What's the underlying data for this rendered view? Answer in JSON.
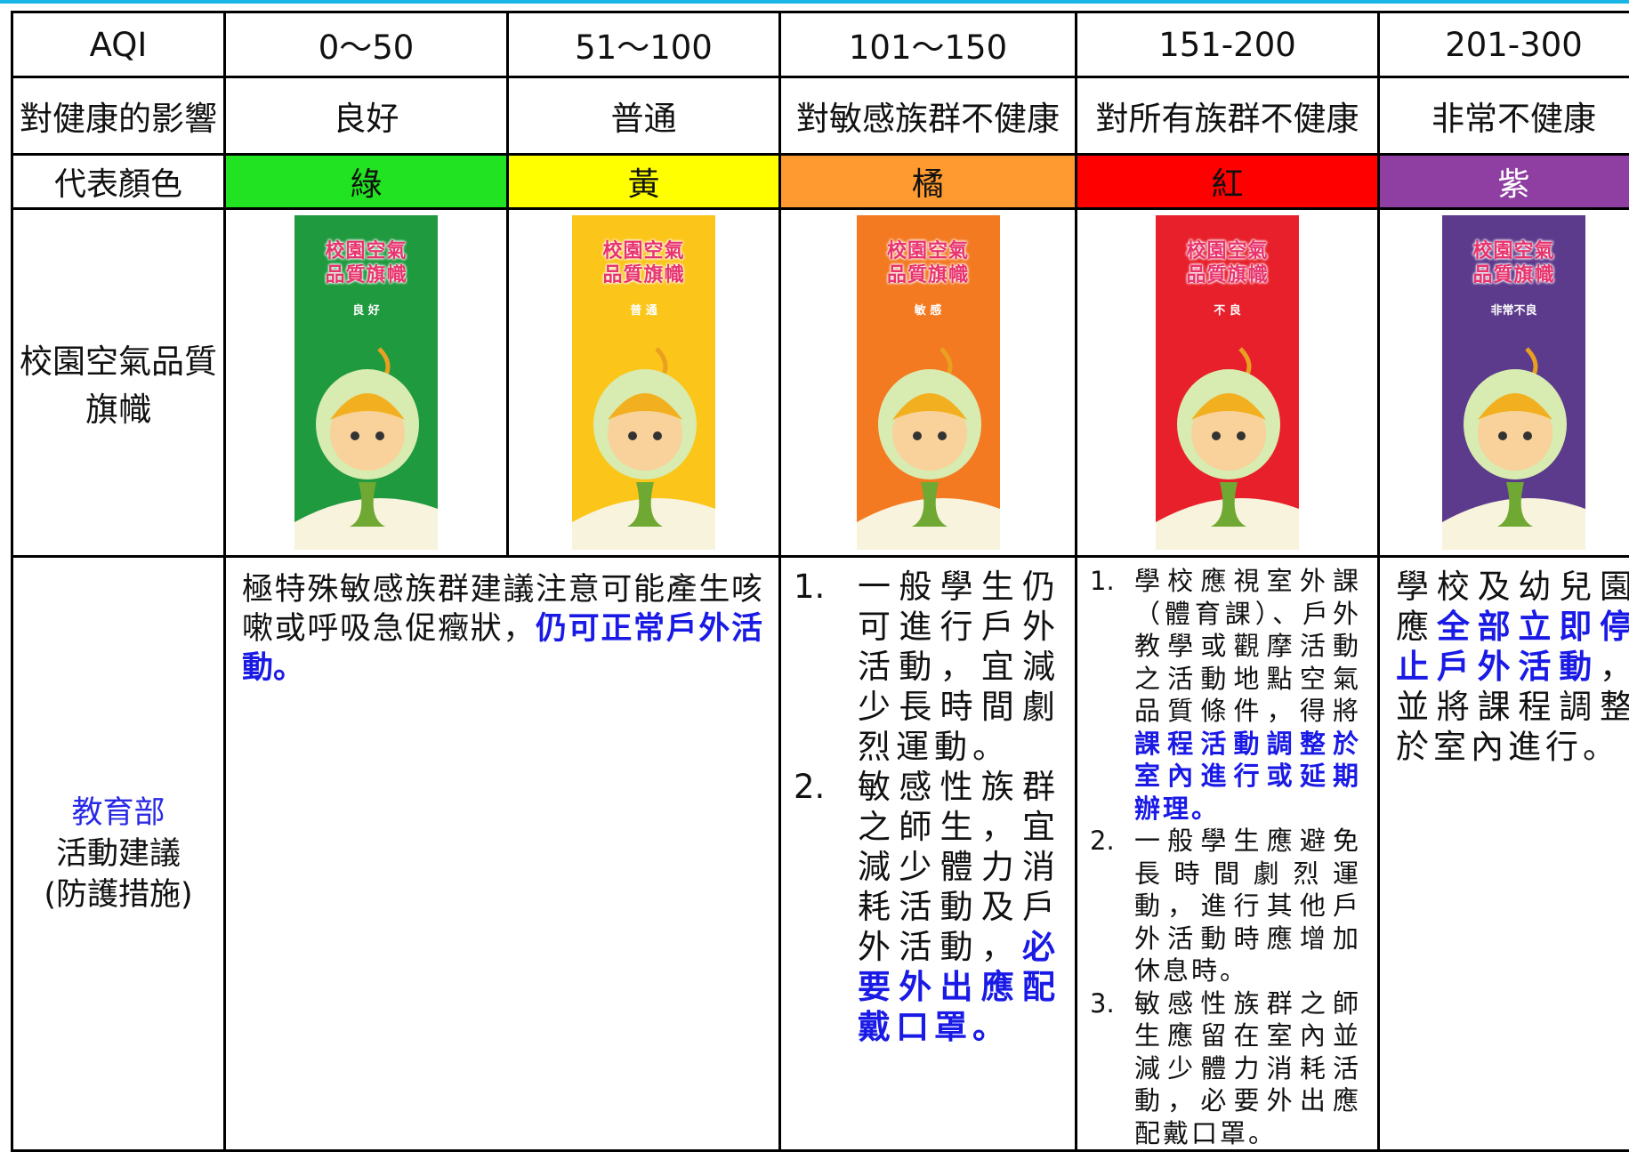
{
  "table": {
    "header": [
      "AQI",
      "0～50",
      "51～100",
      "101～150",
      "151-200",
      "201-300"
    ],
    "health": [
      "對健康的影響",
      "良好",
      "普通",
      "對敏感族群不健康",
      "對所有族群不健康",
      "非常不健康"
    ],
    "color_row": {
      "label": "代表顏色",
      "cells": [
        {
          "text": "綠",
          "color": "#22e322"
        },
        {
          "text": "黃",
          "color": "#ffff00"
        },
        {
          "text": "橘",
          "color": "#ff9a30"
        },
        {
          "text": "紅",
          "color": "#ff0000"
        },
        {
          "text": "紫",
          "color": "#8f3fa2",
          "text_color": "#ffffff"
        }
      ]
    },
    "flag_row": {
      "label": "校園空氣品質旗幟",
      "flags": [
        {
          "title": [
            "校園空氣",
            "品質旗幟"
          ],
          "level": "良 好",
          "color": "#1f9a3e"
        },
        {
          "title": [
            "校園空氣",
            "品質旗幟"
          ],
          "level": "普 通",
          "color": "#fcc51a"
        },
        {
          "title": [
            "校園空氣",
            "品質旗幟"
          ],
          "level": "敏 感",
          "color": "#f47a22"
        },
        {
          "title": [
            "校園空氣",
            "品質旗幟"
          ],
          "level": "不 良",
          "color": "#e8202b"
        },
        {
          "title": [
            "校園空氣",
            "品質旗幟"
          ],
          "level": "非常不良",
          "color": "#5c3a8c"
        }
      ]
    },
    "activity_row": {
      "label": [
        "教育部",
        "活動建議",
        "(防護措施)"
      ],
      "cells": [
        {
          "items": [
            {
              "parts": [
                {
                  "text": "極特殊敏感族群建議注意可能產生咳嗽或呼吸急促癥狀，"
                },
                {
                  "text": "仍可正常戶外活動。",
                  "bold": true
                }
              ]
            }
          ]
        },
        {
          "items": [
            {
              "marker": "1.",
              "parts": [
                {
                  "text": "一般學生仍可進行戶外活動，宜減少長時間劇烈運動。"
                }
              ]
            },
            {
              "marker": "2.",
              "parts": [
                {
                  "text": "敏感性族群之師生，宜減少體力消耗活動及戶外活動，"
                },
                {
                  "text": "必要外出應配戴口罩。",
                  "bold": true
                }
              ]
            }
          ]
        },
        {
          "items": [
            {
              "marker": "1.",
              "parts": [
                {
                  "text": "學校應視室外課（體育課）、戶外教學或觀摩活動之活動地點空氣品質條件，得將"
                },
                {
                  "text": "課程活動調整於室內進行或延期辦理。",
                  "bold": true
                }
              ]
            },
            {
              "marker": "2.",
              "parts": [
                {
                  "text": "一般學生應避免長時間劇烈運動，進行其他戶外活動時應增加休息時。"
                }
              ]
            },
            {
              "marker": "3.",
              "parts": [
                {
                  "text": "敏感性族群之師生應留在室內並減少體力消耗活動，必要外出應配戴口罩。"
                }
              ]
            }
          ]
        },
        {
          "items": [
            {
              "parts": [
                {
                  "text": "學校及幼兒園應"
                },
                {
                  "text": "全部立即停止戶外活動",
                  "bold": true
                },
                {
                  "text": "，並將課程調整於室內進行。"
                }
              ]
            }
          ]
        }
      ]
    }
  }
}
